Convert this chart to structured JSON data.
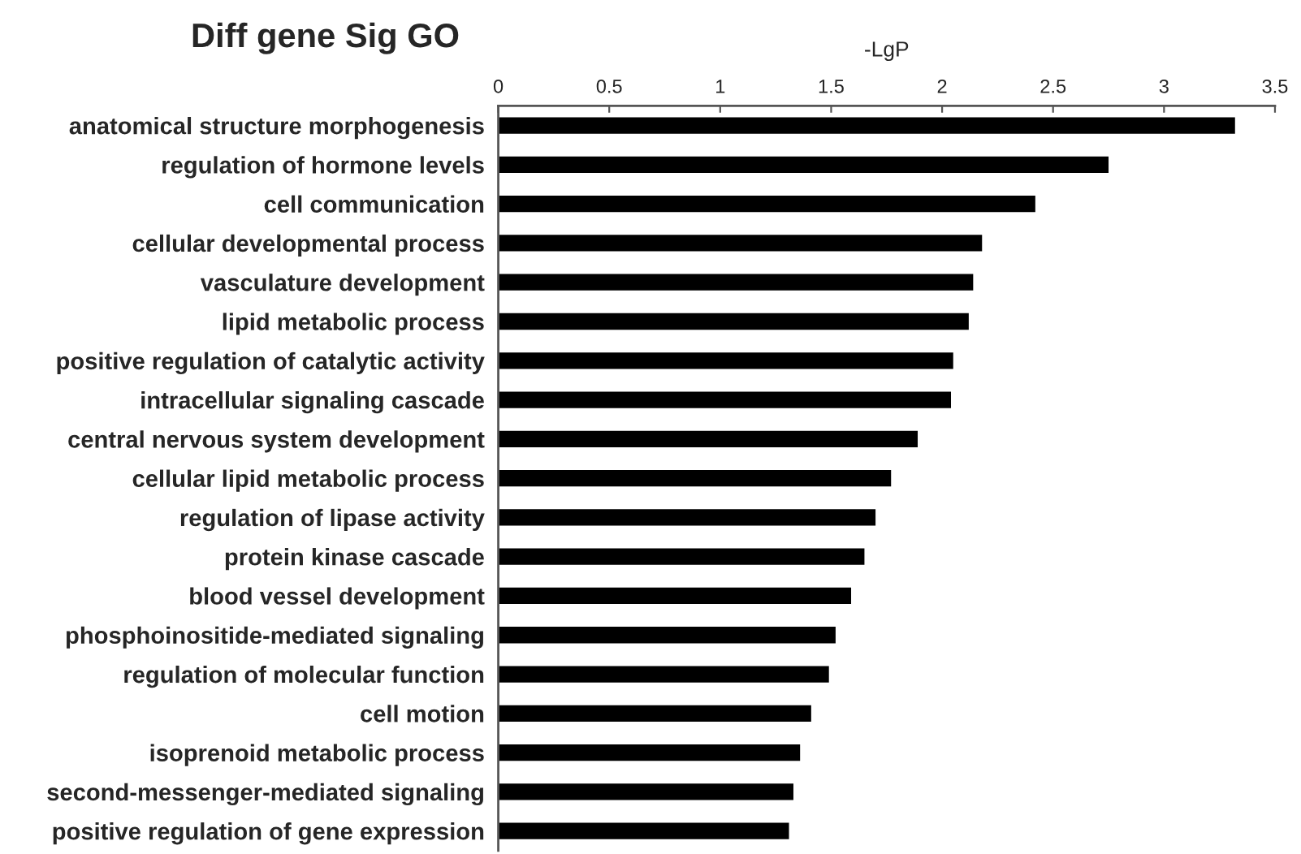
{
  "chart_data": {
    "type": "bar",
    "orientation": "horizontal",
    "title": "Diff gene Sig GO",
    "xlabel": "-LgP",
    "categories": [
      "anatomical structure morphogenesis",
      "regulation of hormone levels",
      "cell communication",
      "cellular developmental process",
      "vasculature development",
      "lipid metabolic process",
      "positive regulation of catalytic activity",
      "intracellular signaling cascade",
      "central nervous system development",
      "cellular lipid metabolic process",
      "regulation of lipase activity",
      "protein kinase cascade",
      "blood vessel development",
      "phosphoinositide-mediated signaling",
      "regulation of molecular function",
      "cell motion",
      "isoprenoid metabolic process",
      "second-messenger-mediated signaling",
      "positive regulation of gene expression"
    ],
    "values": [
      3.32,
      2.75,
      2.42,
      2.18,
      2.14,
      2.12,
      2.05,
      2.04,
      1.89,
      1.77,
      1.7,
      1.65,
      1.59,
      1.52,
      1.49,
      1.41,
      1.36,
      1.33,
      1.31
    ],
    "color": "#000000",
    "xlim": [
      0,
      3.5
    ],
    "xticks": [
      0,
      0.5,
      1,
      1.5,
      2,
      2.5,
      3,
      3.5
    ],
    "grid": false
  }
}
